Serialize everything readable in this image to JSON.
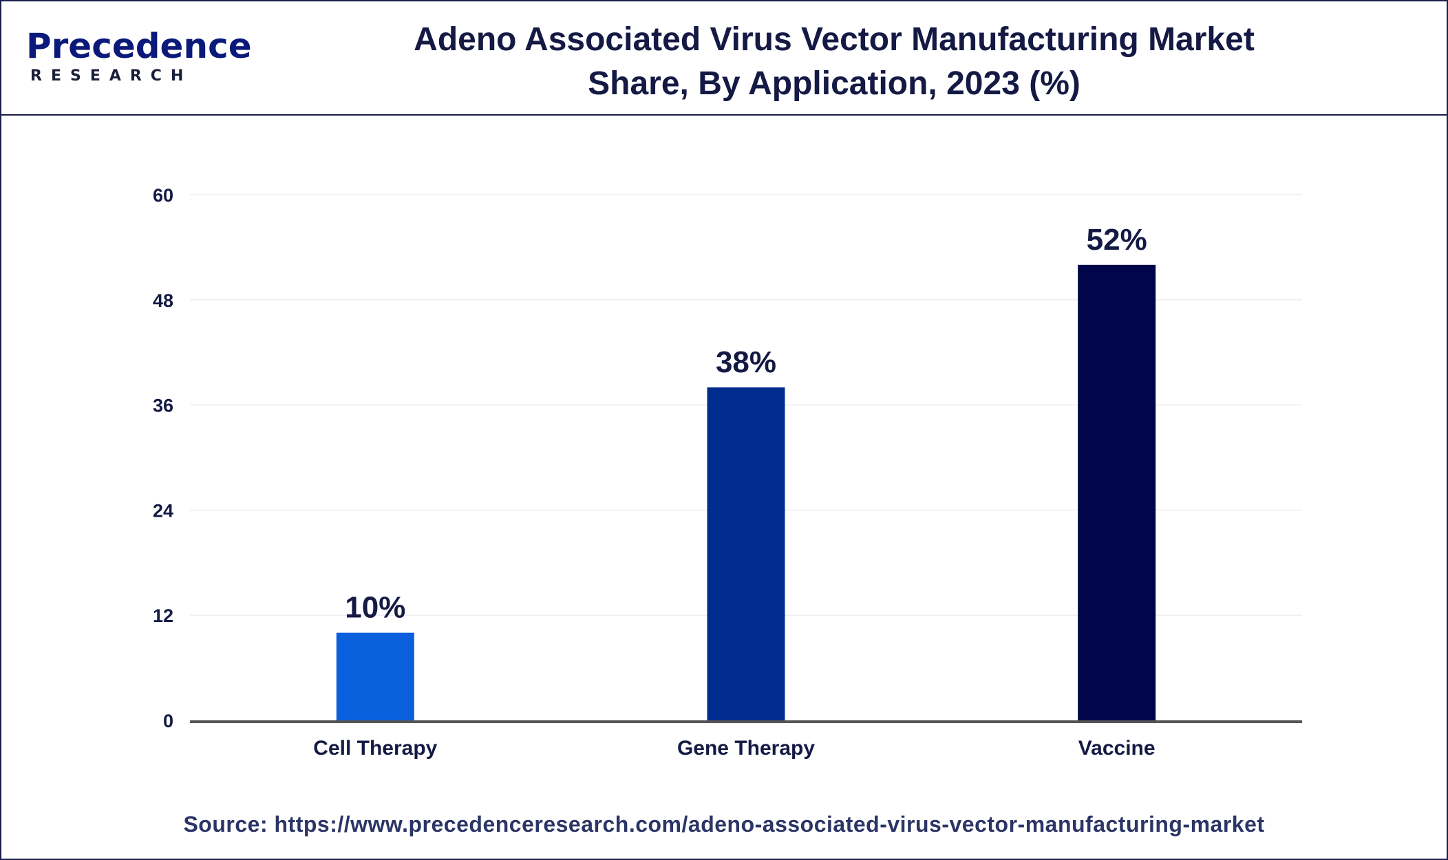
{
  "header": {
    "logo_main": "Precedence",
    "logo_sub": "RESEARCH",
    "title_line1": "Adeno Associated Virus Vector Manufacturing Market",
    "title_line2": "Share, By Application, 2023 (%)"
  },
  "chart_data": {
    "type": "bar",
    "categories": [
      "Cell Therapy",
      "Gene Therapy",
      "Vaccine"
    ],
    "values": [
      10,
      38,
      52
    ],
    "value_labels": [
      "10%",
      "38%",
      "52%"
    ],
    "bar_colors": [
      "#0a5fdc",
      "#002b8f",
      "#010549"
    ],
    "ylim": [
      0,
      60
    ],
    "yticks": [
      "0",
      "12",
      "24",
      "36",
      "48",
      "60"
    ],
    "grid": true,
    "title": "Adeno Associated Virus Vector Manufacturing Market Share, By Application, 2023 (%)",
    "xlabel": "",
    "ylabel": ""
  },
  "footer": {
    "source": "Source: https://www.precedenceresearch.com/adeno-associated-virus-vector-manufacturing-market"
  }
}
